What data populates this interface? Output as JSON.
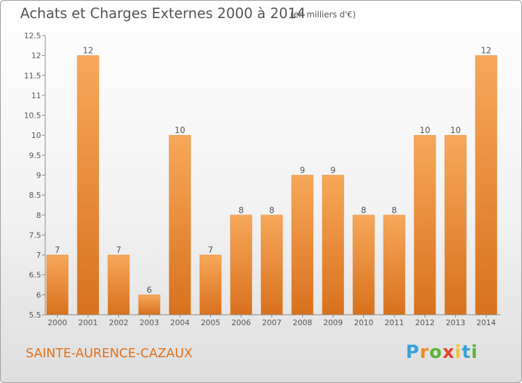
{
  "title": "Achats et Charges Externes 2000 à 2014",
  "subtitle": "(en milliers d'€)",
  "commune": "SAINTE-AURENCE-CAZAUX",
  "brand": {
    "letters": [
      "P",
      "r",
      "o",
      "x",
      "i",
      "t",
      "i"
    ],
    "colors": [
      "#3aa0d8",
      "#f08a1e",
      "#5cb531",
      "#e8402a",
      "#f2c12e",
      "#3aa0d8",
      "#5cb531"
    ]
  },
  "colors": {
    "bar_top": "#f7a85a",
    "bar_bottom": "#d8711d",
    "bar_edge": "#e08a3a",
    "text": "#555555",
    "axis": "#888888"
  },
  "chart_data": {
    "type": "bar",
    "categories": [
      "2000",
      "2001",
      "2002",
      "2003",
      "2004",
      "2005",
      "2006",
      "2007",
      "2008",
      "2009",
      "2010",
      "2011",
      "2012",
      "2013",
      "2014"
    ],
    "values": [
      7,
      12,
      7,
      6,
      10,
      7,
      8,
      8,
      9,
      9,
      8,
      8,
      10,
      10,
      12
    ],
    "value_labels": [
      "7",
      "12",
      "7",
      "6",
      "10",
      "7",
      "8",
      "8",
      "9",
      "9",
      "8",
      "8",
      "10",
      "10",
      "12"
    ],
    "ylim": [
      5.5,
      12.5
    ],
    "yticks": [
      "5.5",
      "6",
      "6.5",
      "7",
      "7.5",
      "8",
      "8.5",
      "9",
      "9.5",
      "10",
      "10.5",
      "11",
      "11.5",
      "12",
      "12.5"
    ],
    "grid": false,
    "legend": "none"
  }
}
